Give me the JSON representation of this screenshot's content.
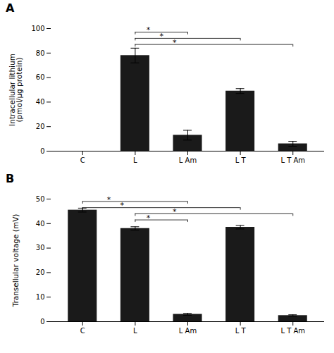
{
  "chart_data": [
    {
      "type": "bar",
      "title": "A",
      "categories": [
        "C",
        "L",
        "L Am",
        "L T",
        "L T Am"
      ],
      "values": [
        0,
        78,
        13,
        49,
        6
      ],
      "errors": [
        0,
        6,
        4,
        2,
        2
      ],
      "ylabel": "Intracellular lithium\n(pmol/μg protein)",
      "ylim": [
        0,
        100
      ],
      "yticks": [
        0,
        20,
        40,
        60,
        80,
        100
      ],
      "color": "#1a1a1a",
      "grid": false,
      "significance_bars": [
        {
          "from": "L",
          "to": "L Am",
          "y": 97,
          "label": "*"
        },
        {
          "from": "L",
          "to": "L T",
          "y": 92,
          "label": "*"
        },
        {
          "from": "L",
          "to": "L T Am",
          "y": 87,
          "label": "*"
        }
      ]
    },
    {
      "type": "bar",
      "title": "B",
      "categories": [
        "C",
        "L",
        "L Am",
        "L T",
        "L T Am"
      ],
      "values": [
        45.5,
        38,
        3,
        38.5,
        2.5
      ],
      "errors": [
        0.8,
        0.7,
        0.4,
        0.7,
        0.3
      ],
      "ylabel": "Transellular voltage (mV)",
      "ylim": [
        0,
        50
      ],
      "yticks": [
        0,
        10,
        20,
        30,
        40,
        50
      ],
      "color": "#1a1a1a",
      "grid": false,
      "significance_bars": [
        {
          "from": "C",
          "to": "L Am",
          "y": 49,
          "label": "*"
        },
        {
          "from": "C",
          "to": "L T",
          "y": 46.5,
          "label": "*"
        },
        {
          "from": "L",
          "to": "L Am",
          "y": 41.5,
          "label": "*"
        },
        {
          "from": "L",
          "to": "L T Am",
          "y": 44,
          "label": "*"
        }
      ]
    }
  ]
}
